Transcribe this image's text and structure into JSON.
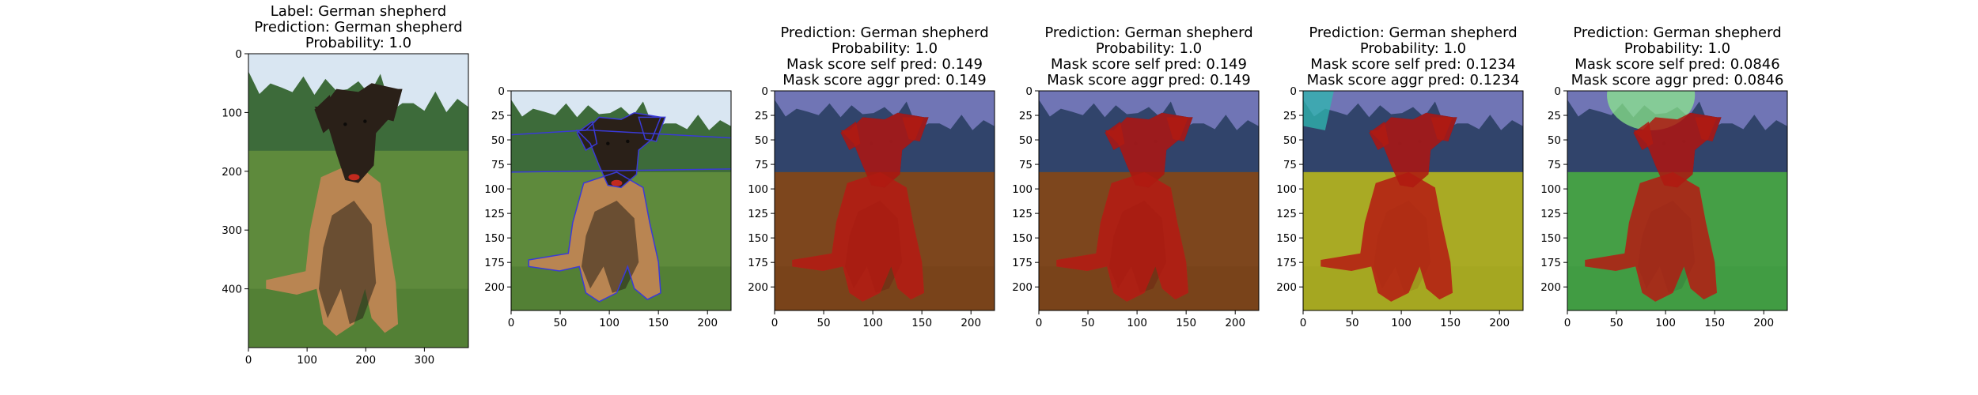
{
  "chart_data": [
    {
      "type": "image",
      "title_lines": [
        "Label: German shepherd",
        "Prediction: German shepherd",
        "Probability: 1.0"
      ],
      "xlim": [
        0,
        375
      ],
      "ylim": [
        500,
        0
      ],
      "xticks": [
        0,
        100,
        200,
        300
      ],
      "yticks": [
        0,
        100,
        200,
        300,
        400
      ],
      "overlay": "none",
      "contour_color": "",
      "background_color": ""
    },
    {
      "type": "image",
      "title_lines": [],
      "xlim": [
        0,
        224
      ],
      "ylim": [
        224,
        0
      ],
      "xticks": [
        0,
        50,
        100,
        150,
        200
      ],
      "yticks": [
        0,
        25,
        50,
        75,
        100,
        125,
        150,
        175,
        200
      ],
      "overlay": "contours",
      "contour_color": "#3a3ad6",
      "background_color": ""
    },
    {
      "type": "image",
      "title_lines": [
        "Prediction: German shepherd",
        "Probability: 1.0",
        "Mask score self pred: 0.149",
        "Mask score aggr pred: 0.149"
      ],
      "xlim": [
        0,
        224
      ],
      "ylim": [
        224,
        0
      ],
      "xticks": [
        0,
        50,
        100,
        150,
        200
      ],
      "yticks": [
        0,
        25,
        50,
        75,
        100,
        125,
        150,
        175,
        200
      ],
      "overlay": "segments",
      "ground_color": "#8a2a10",
      "sky_color": "#2a2a8c",
      "extra_color": ""
    },
    {
      "type": "image",
      "title_lines": [
        "Prediction: German shepherd",
        "Probability: 1.0",
        "Mask score self pred: 0.149",
        "Mask score aggr pred: 0.149"
      ],
      "xlim": [
        0,
        224
      ],
      "ylim": [
        224,
        0
      ],
      "xticks": [
        0,
        50,
        100,
        150,
        200
      ],
      "yticks": [
        0,
        25,
        50,
        75,
        100,
        125,
        150,
        175,
        200
      ],
      "overlay": "segments",
      "ground_color": "#8a2a10",
      "sky_color": "#2a2a8c",
      "extra_color": ""
    },
    {
      "type": "image",
      "title_lines": [
        "Prediction: German shepherd",
        "Probability: 1.0",
        "Mask score self pred: 0.1234",
        "Mask score aggr pred: 0.1234"
      ],
      "xlim": [
        0,
        224
      ],
      "ylim": [
        224,
        0
      ],
      "xticks": [
        0,
        50,
        100,
        150,
        200
      ],
      "yticks": [
        0,
        25,
        50,
        75,
        100,
        125,
        150,
        175,
        200
      ],
      "overlay": "segments",
      "ground_color": "#c9b81a",
      "sky_color": "#2a2a8c",
      "extra_color": "#2fb8b0"
    },
    {
      "type": "image",
      "title_lines": [
        "Prediction: German shepherd",
        "Probability: 1.0",
        "Mask score self pred: 0.0846",
        "Mask score aggr pred: 0.0846"
      ],
      "xlim": [
        0,
        224
      ],
      "ylim": [
        224,
        0
      ],
      "xticks": [
        0,
        50,
        100,
        150,
        200
      ],
      "yticks": [
        0,
        25,
        50,
        75,
        100,
        125,
        150,
        175,
        200
      ],
      "overlay": "segments",
      "ground_color": "#3aa84a",
      "sky_color": "#2a2a8c",
      "extra_color": "#8ef08a"
    }
  ],
  "colors": {
    "dog_highlight": "#b01a12",
    "tree": "#3d6b3a",
    "sky": "#d9e6f2",
    "grass": "#5e8a3c",
    "dog_body": "#2a2018",
    "dog_tan": "#b98552"
  }
}
